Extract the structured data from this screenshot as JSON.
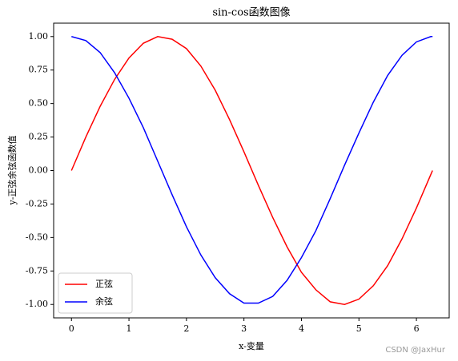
{
  "chart_data": {
    "type": "line",
    "title": "sin-cos函数图像",
    "x_label": "x-变量",
    "y_label": "y-正弦余弦函数值",
    "x": [
      0,
      0.25,
      0.5,
      0.75,
      1,
      1.25,
      1.5,
      1.75,
      2,
      2.25,
      2.5,
      2.75,
      3,
      3.25,
      3.5,
      3.75,
      4,
      4.25,
      4.5,
      4.75,
      5,
      5.25,
      5.5,
      5.75,
      6,
      6.25,
      6.28
    ],
    "series": [
      {
        "name": "正弦",
        "color": "#ff0000",
        "values": [
          0,
          0.25,
          0.48,
          0.68,
          0.84,
          0.95,
          1.0,
          0.98,
          0.91,
          0.78,
          0.6,
          0.38,
          0.14,
          -0.11,
          -0.35,
          -0.57,
          -0.76,
          -0.89,
          -0.98,
          -1.0,
          -0.96,
          -0.86,
          -0.71,
          -0.51,
          -0.28,
          -0.03,
          0
        ]
      },
      {
        "name": "余弦",
        "color": "#0000ff",
        "values": [
          1,
          0.97,
          0.88,
          0.73,
          0.54,
          0.32,
          0.07,
          -0.18,
          -0.42,
          -0.63,
          -0.8,
          -0.92,
          -0.99,
          -0.99,
          -0.94,
          -0.82,
          -0.65,
          -0.45,
          -0.21,
          0.04,
          0.28,
          0.51,
          0.71,
          0.86,
          0.96,
          1.0,
          1.0
        ]
      }
    ],
    "xlim": [
      -0.31,
      6.57
    ],
    "ylim": [
      -1.1,
      1.1
    ],
    "xticks": [
      0,
      1,
      2,
      3,
      4,
      5,
      6
    ],
    "yticks": [
      {
        "value": -1,
        "label": "-1.00"
      },
      {
        "value": -0.75,
        "label": "-0.75"
      },
      {
        "value": -0.5,
        "label": "-0.50"
      },
      {
        "value": -0.25,
        "label": "-0.25"
      },
      {
        "value": 0,
        "label": "0.00"
      },
      {
        "value": 0.25,
        "label": "0.25"
      },
      {
        "value": 0.5,
        "label": "0.50"
      },
      {
        "value": 0.75,
        "label": "0.75"
      },
      {
        "value": 1,
        "label": "1.00"
      }
    ],
    "legend": "lower left"
  },
  "watermark": "CSDN @JaxHur"
}
